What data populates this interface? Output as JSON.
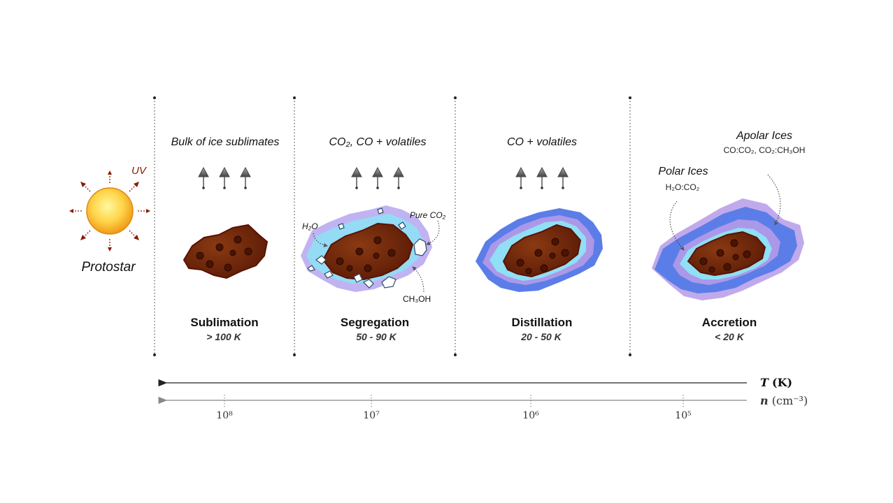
{
  "protostar": {
    "label": "Protostar",
    "uv": "UV"
  },
  "stages": [
    {
      "id": "sublimation",
      "name": "Sublimation",
      "temp": "> 100 K",
      "process": "Bulk of ice sublimates"
    },
    {
      "id": "segregation",
      "name": "Segregation",
      "temp": "50 - 90  K",
      "process": "CO₂, CO + volatiles",
      "labels": {
        "h2o": "H₂O",
        "pure_co2": "Pure CO₂",
        "ch3oh": "CH₃OH"
      }
    },
    {
      "id": "distillation",
      "name": "Distillation",
      "temp": "20 - 50  K",
      "process": "CO + volatiles"
    },
    {
      "id": "accretion",
      "name": "Accretion",
      "temp": "< 20 K",
      "polar": {
        "title": "Polar Ices",
        "formula": "H₂O:CO₂"
      },
      "apolar": {
        "title": "Apolar Ices",
        "formula": "CO:CO₂, CO₂:CH₃OH"
      }
    }
  ],
  "axes": {
    "temperature": {
      "label": "T",
      "unit": "(K)"
    },
    "density": {
      "label": "n",
      "unit": "(cm⁻³)",
      "ticks": [
        "10⁸",
        "10⁷",
        "10⁶",
        "10⁵"
      ]
    }
  },
  "colors": {
    "grain_brown": "#7a2a0e",
    "grain_edge": "#6a1a06",
    "polar_ice": "#9fe4f7",
    "apolar_ice": "#5b7de8",
    "apolar_purple": "#b59be8",
    "sun_core": "#ffe070",
    "sun_edge": "#f0a020",
    "uv_arrow": "#8b1a00"
  }
}
